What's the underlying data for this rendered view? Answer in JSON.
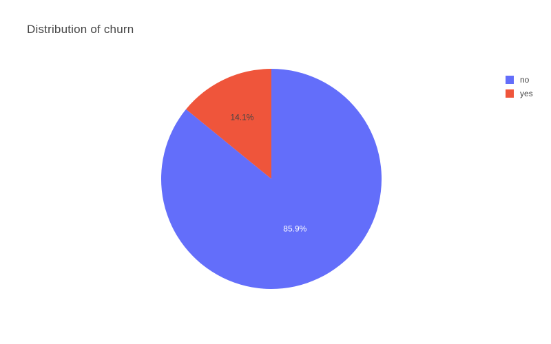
{
  "chart_data": {
    "type": "pie",
    "title": "Distribution of churn",
    "labels": [
      "no",
      "yes"
    ],
    "values": [
      85.9,
      14.1
    ],
    "value_labels": [
      "85.9%",
      "14.1%"
    ],
    "colors": [
      "#636efa",
      "#EF553B"
    ],
    "slice_label_colors": [
      "#ffffff",
      "#444444"
    ],
    "direction": "clockwise",
    "legend_position": "top-right"
  }
}
